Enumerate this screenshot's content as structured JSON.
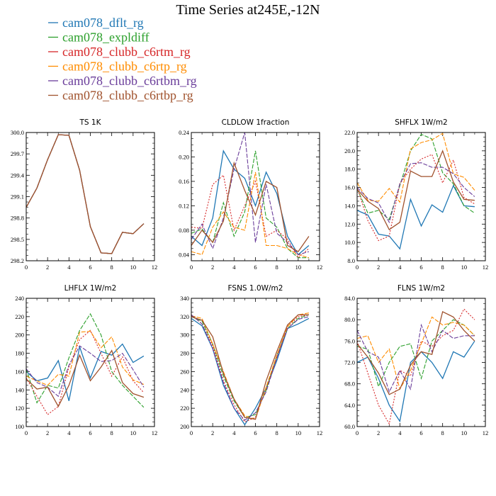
{
  "title": "Time Series at245E,-12N",
  "legend": [
    {
      "name": "cam078_dflt_rg",
      "color": "#1f77b4"
    },
    {
      "name": "cam078_expldiff",
      "color": "#2ca02c"
    },
    {
      "name": "cam078_clubb_c6rtm_rg",
      "color": "#d62728"
    },
    {
      "name": "cam078_clubb_c6rtp_rg",
      "color": "#ff8c00"
    },
    {
      "name": "cam078_clubb_c6rtbm_rg",
      "color": "#6a3d9a"
    },
    {
      "name": "cam078_clubb_c6rtbp_rg",
      "color": "#a0522d"
    }
  ],
  "chart_data": [
    {
      "type": "line",
      "title": "TS   1K",
      "x": [
        0,
        1,
        2,
        3,
        4,
        5,
        6,
        7,
        8,
        9,
        10,
        11
      ],
      "xlim": [
        0,
        12
      ],
      "xticks": [
        "0",
        "2",
        "4",
        "6",
        "8",
        "10",
        "12"
      ],
      "ylim": [
        298.2,
        300.0
      ],
      "yticks": [
        "298.2",
        "298.5",
        "298.8",
        "299.1",
        "299.4",
        "299.7",
        "300.0"
      ],
      "series": [
        {
          "name": "cam078_dflt_rg",
          "values": [
            298.95,
            299.22,
            299.62,
            299.97,
            299.96,
            299.47,
            298.68,
            298.31,
            298.3,
            298.6,
            298.58,
            298.72
          ]
        },
        {
          "name": "cam078_expldiff",
          "values": [
            298.95,
            299.22,
            299.62,
            299.97,
            299.96,
            299.47,
            298.68,
            298.31,
            298.3,
            298.6,
            298.58,
            298.72
          ]
        },
        {
          "name": "cam078_clubb_c6rtm_rg",
          "values": [
            298.95,
            299.22,
            299.62,
            299.97,
            299.96,
            299.47,
            298.68,
            298.31,
            298.3,
            298.6,
            298.58,
            298.72
          ]
        },
        {
          "name": "cam078_clubb_c6rtp_rg",
          "values": [
            298.95,
            299.22,
            299.62,
            299.97,
            299.96,
            299.47,
            298.68,
            298.31,
            298.3,
            298.6,
            298.58,
            298.72
          ]
        },
        {
          "name": "cam078_clubb_c6rtbm_rg",
          "values": [
            298.95,
            299.22,
            299.62,
            299.97,
            299.96,
            299.47,
            298.68,
            298.31,
            298.3,
            298.6,
            298.58,
            298.72
          ]
        },
        {
          "name": "cam078_clubb_c6rtbp_rg",
          "values": [
            298.95,
            299.22,
            299.62,
            299.97,
            299.96,
            299.47,
            298.68,
            298.31,
            298.3,
            298.6,
            298.58,
            298.72
          ]
        }
      ]
    },
    {
      "type": "line",
      "title": "CLDLOW   1fraction",
      "x": [
        0,
        1,
        2,
        3,
        4,
        5,
        6,
        7,
        8,
        9,
        10,
        11
      ],
      "xlim": [
        0,
        12
      ],
      "xticks": [
        "0",
        "2",
        "4",
        "6",
        "8",
        "10",
        "12"
      ],
      "ylim": [
        0.03,
        0.24
      ],
      "yticks": [
        "0.04",
        "0.08",
        "0.12",
        "0.16",
        "0.20",
        "0.24"
      ],
      "series": [
        {
          "name": "cam078_dflt_rg",
          "values": [
            0.07,
            0.055,
            0.1,
            0.21,
            0.18,
            0.165,
            0.12,
            0.175,
            0.14,
            0.07,
            0.04,
            0.055
          ]
        },
        {
          "name": "cam078_expldiff",
          "values": [
            0.075,
            0.082,
            0.06,
            0.125,
            0.07,
            0.11,
            0.21,
            0.1,
            0.085,
            0.05,
            0.035,
            0.035
          ]
        },
        {
          "name": "cam078_clubb_c6rtm_rg",
          "values": [
            0.085,
            0.083,
            0.155,
            0.17,
            0.08,
            0.12,
            0.16,
            0.07,
            0.08,
            0.065,
            0.035,
            0.05
          ]
        },
        {
          "name": "cam078_clubb_c6rtp_rg",
          "values": [
            0.045,
            0.04,
            0.085,
            0.11,
            0.085,
            0.08,
            0.175,
            0.055,
            0.055,
            0.05,
            0.04,
            0.035
          ]
        },
        {
          "name": "cam078_clubb_c6rtbm_rg",
          "values": [
            0.065,
            0.09,
            0.05,
            0.1,
            0.18,
            0.24,
            0.06,
            0.155,
            0.075,
            0.06,
            0.04,
            0.045
          ]
        },
        {
          "name": "cam078_clubb_c6rtbp_rg",
          "values": [
            0.055,
            0.08,
            0.06,
            0.095,
            0.19,
            0.145,
            0.105,
            0.16,
            0.15,
            0.055,
            0.045,
            0.07
          ]
        }
      ]
    },
    {
      "type": "line",
      "title": "SHFLX   1W/m2",
      "x": [
        0,
        1,
        2,
        3,
        4,
        5,
        6,
        7,
        8,
        9,
        10,
        11
      ],
      "xlim": [
        0,
        12
      ],
      "xticks": [
        "0",
        "2",
        "4",
        "6",
        "8",
        "10",
        "12"
      ],
      "ylim": [
        8.0,
        22.0
      ],
      "yticks": [
        "8.0",
        "10.0",
        "12.0",
        "14.0",
        "16.0",
        "18.0",
        "20.0",
        "22.0"
      ],
      "series": [
        {
          "name": "cam078_dflt_rg",
          "values": [
            13.5,
            13.0,
            10.9,
            10.7,
            9.3,
            14.7,
            11.8,
            14.1,
            13.3,
            16.2,
            14.0,
            13.9
          ]
        },
        {
          "name": "cam078_expldiff",
          "values": [
            15.9,
            13.2,
            13.5,
            12.5,
            16.2,
            20.0,
            21.8,
            21.3,
            17.6,
            16.4,
            14.0,
            13.2
          ]
        },
        {
          "name": "cam078_clubb_c6rtm_rg",
          "values": [
            16.0,
            12.4,
            10.2,
            10.7,
            16.4,
            18.0,
            19.1,
            19.6,
            16.5,
            19.0,
            14.9,
            14.2
          ]
        },
        {
          "name": "cam078_clubb_c6rtp_rg",
          "values": [
            16.5,
            14.6,
            14.5,
            15.9,
            14.4,
            20.2,
            20.9,
            21.2,
            21.9,
            17.5,
            17.1,
            15.7
          ]
        },
        {
          "name": "cam078_clubb_c6rtbm_rg",
          "values": [
            16.0,
            14.8,
            14.3,
            12.2,
            16.4,
            18.6,
            18.7,
            18.2,
            18.2,
            17.5,
            16.0,
            15.0
          ]
        },
        {
          "name": "cam078_clubb_c6rtbp_rg",
          "values": [
            15.8,
            14.5,
            13.7,
            11.4,
            12.2,
            17.8,
            17.2,
            17.2,
            20.0,
            16.6,
            14.7,
            14.6
          ]
        }
      ]
    },
    {
      "type": "line",
      "title": "LHFLX   1W/m2",
      "x": [
        0,
        1,
        2,
        3,
        4,
        5,
        6,
        7,
        8,
        9,
        10,
        11
      ],
      "xlim": [
        0,
        12
      ],
      "xticks": [
        "0",
        "2",
        "4",
        "6",
        "8",
        "10",
        "12"
      ],
      "ylim": [
        100,
        240
      ],
      "yticks": [
        "100",
        "120",
        "140",
        "160",
        "180",
        "200",
        "220",
        "240"
      ],
      "series": [
        {
          "name": "cam078_dflt_rg",
          "values": [
            160,
            150,
            153,
            172,
            128,
            187,
            153,
            182,
            178,
            190,
            170,
            177
          ]
        },
        {
          "name": "cam078_expldiff",
          "values": [
            163,
            126,
            145,
            142,
            175,
            205,
            223,
            200,
            160,
            145,
            133,
            121
          ]
        },
        {
          "name": "cam078_clubb_c6rtm_rg",
          "values": [
            153,
            133,
            113,
            122,
            165,
            195,
            205,
            180,
            155,
            176,
            150,
            137
          ]
        },
        {
          "name": "cam078_clubb_c6rtp_rg",
          "values": [
            155,
            150,
            145,
            157,
            155,
            203,
            204,
            186,
            198,
            165,
            151,
            146
          ]
        },
        {
          "name": "cam078_clubb_c6rtbm_rg",
          "values": [
            163,
            148,
            143,
            133,
            167,
            188,
            180,
            171,
            172,
            180,
            162,
            143
          ]
        },
        {
          "name": "cam078_clubb_c6rtbp_rg",
          "values": [
            152,
            141,
            143,
            122,
            145,
            178,
            150,
            165,
            183,
            148,
            136,
            132
          ]
        }
      ]
    },
    {
      "type": "line",
      "title": "FSNS   1.0W/m2",
      "x": [
        0,
        1,
        2,
        3,
        4,
        5,
        6,
        7,
        8,
        9,
        10,
        11
      ],
      "xlim": [
        0,
        12
      ],
      "xticks": [
        "0",
        "2",
        "4",
        "6",
        "8",
        "10",
        "12"
      ],
      "ylim": [
        200,
        340
      ],
      "yticks": [
        "200",
        "220",
        "240",
        "260",
        "280",
        "300",
        "320",
        "340"
      ],
      "series": [
        {
          "name": "cam078_dflt_rg",
          "values": [
            318,
            310,
            285,
            245,
            220,
            202,
            220,
            242,
            272,
            307,
            312,
            318
          ]
        },
        {
          "name": "cam078_expldiff",
          "values": [
            320,
            315,
            290,
            255,
            228,
            210,
            213,
            240,
            278,
            307,
            318,
            322
          ]
        },
        {
          "name": "cam078_clubb_c6rtm_rg",
          "values": [
            322,
            312,
            288,
            250,
            224,
            205,
            210,
            242,
            275,
            309,
            320,
            322
          ]
        },
        {
          "name": "cam078_clubb_c6rtp_rg",
          "values": [
            321,
            318,
            290,
            260,
            230,
            212,
            208,
            243,
            278,
            309,
            322,
            324
          ]
        },
        {
          "name": "cam078_clubb_c6rtbm_rg",
          "values": [
            322,
            312,
            285,
            248,
            220,
            207,
            215,
            238,
            275,
            307,
            317,
            320
          ]
        },
        {
          "name": "cam078_clubb_c6rtbp_rg",
          "values": [
            320,
            316,
            298,
            258,
            230,
            210,
            208,
            250,
            282,
            311,
            322,
            322
          ]
        }
      ]
    },
    {
      "type": "line",
      "title": "FLNS   1W/m2",
      "x": [
        0,
        1,
        2,
        3,
        4,
        5,
        6,
        7,
        8,
        9,
        10,
        11
      ],
      "xlim": [
        0,
        12
      ],
      "xticks": [
        "0",
        "2",
        "4",
        "6",
        "8",
        "10",
        "12"
      ],
      "ylim": [
        60.0,
        84.0
      ],
      "yticks": [
        "60.0",
        "64.0",
        "68.0",
        "72.0",
        "76.0",
        "80.0",
        "84.0"
      ],
      "series": [
        {
          "name": "cam078_dflt_rg",
          "values": [
            72.0,
            73.0,
            69.0,
            64.0,
            61.0,
            72.0,
            74.0,
            72.0,
            69.0,
            74.0,
            73.0,
            76.0
          ]
        },
        {
          "name": "cam078_expldiff",
          "values": [
            75.0,
            74.5,
            67.5,
            72.0,
            75.0,
            75.5,
            69.0,
            76.0,
            78.0,
            80.0,
            79.0,
            77.0
          ]
        },
        {
          "name": "cam078_clubb_c6rtm_rg",
          "values": [
            76.0,
            70.0,
            64.0,
            60.5,
            70.5,
            69.5,
            76.0,
            75.0,
            77.0,
            78.0,
            82.0,
            80.0
          ]
        },
        {
          "name": "cam078_clubb_c6rtp_rg",
          "values": [
            76.5,
            77.0,
            72.0,
            74.5,
            67.0,
            70.5,
            75.5,
            80.5,
            79.0,
            79.5,
            79.0,
            77.0
          ]
        },
        {
          "name": "cam078_clubb_c6rtbm_rg",
          "values": [
            78.0,
            74.0,
            73.0,
            66.5,
            70.5,
            67.0,
            79.0,
            74.0,
            78.0,
            76.5,
            77.0,
            77.0
          ]
        },
        {
          "name": "cam078_clubb_c6rtbp_rg",
          "values": [
            75.5,
            73.0,
            70.0,
            66.0,
            67.0,
            71.5,
            74.0,
            73.5,
            81.5,
            80.5,
            78.0,
            76.0
          ]
        }
      ]
    }
  ]
}
